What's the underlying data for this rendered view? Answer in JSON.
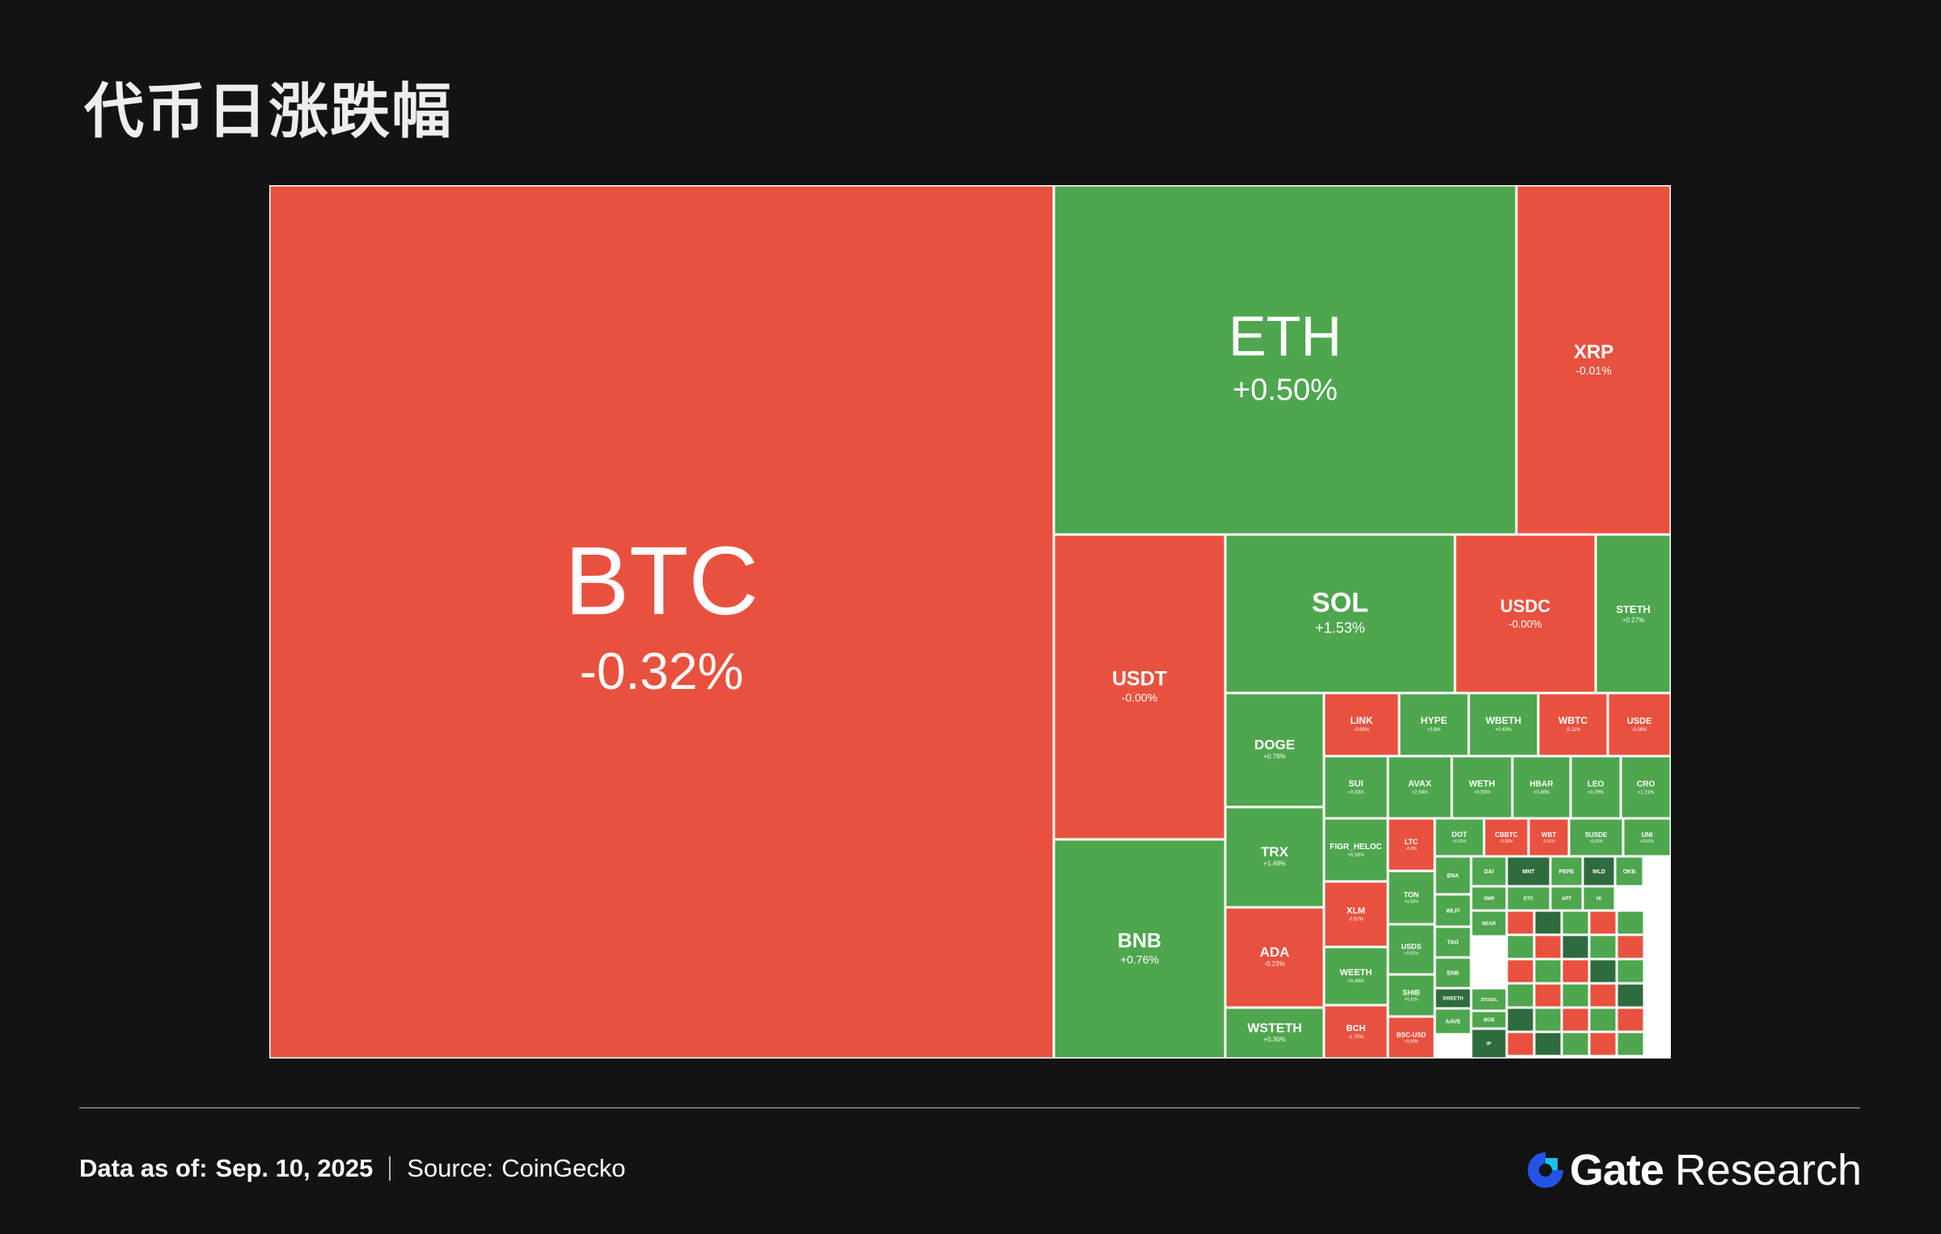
{
  "title": "代币日涨跌幅",
  "footer": {
    "date_label": "Data as of:",
    "date_value": "Sep. 10, 2025",
    "source_label": "Source:",
    "source_value": "CoinGecko",
    "brand_name": "Gate",
    "brand_suffix": "Research"
  },
  "colors": {
    "up": "#4ea64e",
    "down": "#e9513f",
    "strong_up": "#2e6b3e",
    "border": "#ffffff",
    "background": "#131313",
    "brand_blue": "#2354e6"
  },
  "chart_data": {
    "type": "treemap",
    "unit": "%",
    "tiles": [
      {
        "name": "BTC",
        "change": -0.32,
        "label": "-0.32%"
      },
      {
        "name": "ETH",
        "change": 0.5,
        "label": "+0.50%"
      },
      {
        "name": "XRP",
        "change": -0.01,
        "label": "-0.01%"
      },
      {
        "name": "USDT",
        "change": -0.0,
        "label": "-0.00%"
      },
      {
        "name": "BNB",
        "change": 0.76,
        "label": "+0.76%"
      },
      {
        "name": "SOL",
        "change": 1.53,
        "label": "+1.53%"
      },
      {
        "name": "USDC",
        "change": -0.0,
        "label": "-0.00%"
      },
      {
        "name": "STETH",
        "change": 0.27,
        "label": "+0.27%"
      },
      {
        "name": "DOGE",
        "change": 0.76,
        "label": "+0.76%"
      },
      {
        "name": "TRX",
        "change": 1.49,
        "label": "+1.49%"
      },
      {
        "name": "ADA",
        "change": -0.23,
        "label": "-0.23%"
      },
      {
        "name": "WSTETH",
        "change": 0.3,
        "label": "+0.30%"
      },
      {
        "name": "LINK",
        "change": -0.65,
        "label": "-0.65%"
      },
      {
        "name": "HYPE",
        "change": 3.8,
        "label": "+3.8%"
      },
      {
        "name": "WBETH",
        "change": 0.43,
        "label": "+0.43%"
      },
      {
        "name": "WBTC",
        "change": -0.11,
        "label": "-0.11%"
      },
      {
        "name": "USDE",
        "change": -0.08,
        "label": "-0.08%"
      },
      {
        "name": "SUI",
        "change": 0.33,
        "label": "+0.33%"
      },
      {
        "name": "AVAX",
        "change": 2.94,
        "label": "+2.94%"
      },
      {
        "name": "WETH",
        "change": 0.5,
        "label": "+0.50%"
      },
      {
        "name": "HBAR",
        "change": 0.46,
        "label": "+0.46%"
      },
      {
        "name": "LEO",
        "change": 0.29,
        "label": "+0.29%"
      },
      {
        "name": "CRO",
        "change": 1.21,
        "label": "+1.21%"
      },
      {
        "name": "FIGR_HELOC",
        "change": 0.16,
        "label": "+0.16%"
      },
      {
        "name": "XLM",
        "change": -0.57,
        "label": "-0.57%"
      },
      {
        "name": "WEETH",
        "change": 0.46,
        "label": "+0.46%"
      },
      {
        "name": "BCH",
        "change": -1.75,
        "label": "-1.75%"
      },
      {
        "name": "LTC",
        "change": -0.3,
        "label": "-0.3%"
      },
      {
        "name": "TON",
        "change": 0.43,
        "label": "+0.43%"
      },
      {
        "name": "USDS",
        "change": 0.02,
        "label": "+0.02%"
      },
      {
        "name": "SHIB",
        "change": 0.32,
        "label": "+0.32%"
      },
      {
        "name": "BSC-USD",
        "change": 0.0,
        "label": "+0.00%"
      },
      {
        "name": "DOT",
        "change": 0.32,
        "label": "+0.32%"
      },
      {
        "name": "CBBTC",
        "change": -0.36,
        "label": "-0.36%"
      },
      {
        "name": "WBT",
        "change": -0.11,
        "label": "-0.11%"
      },
      {
        "name": "SUSDE",
        "change": 0.03,
        "label": "+0.03%"
      },
      {
        "name": "UNI",
        "change": 0.62,
        "label": "+0.62%"
      },
      {
        "name": "ENA",
        "change": null,
        "label": ""
      },
      {
        "name": "DAI",
        "change": null,
        "label": ""
      },
      {
        "name": "MNT",
        "change": null,
        "label": ""
      },
      {
        "name": "PEPE",
        "change": null,
        "label": ""
      },
      {
        "name": "WLD",
        "change": null,
        "label": ""
      },
      {
        "name": "OKB",
        "change": null,
        "label": ""
      },
      {
        "name": "WLFI",
        "change": null,
        "label": ""
      },
      {
        "name": "XMR",
        "change": null,
        "label": ""
      },
      {
        "name": "TAO",
        "change": null,
        "label": ""
      },
      {
        "name": "ENB",
        "change": null,
        "label": ""
      },
      {
        "name": "SWEETH",
        "change": null,
        "label": ""
      },
      {
        "name": "AAVE",
        "change": null,
        "label": ""
      },
      {
        "name": "JITOSOL",
        "change": null,
        "label": ""
      },
      {
        "name": "BGB",
        "change": null,
        "label": ""
      },
      {
        "name": "IP",
        "change": null,
        "label": ""
      },
      {
        "name": "NEAR",
        "change": null,
        "label": ""
      },
      {
        "name": "ETC",
        "change": null,
        "label": ""
      },
      {
        "name": "APT",
        "change": null,
        "label": ""
      },
      {
        "name": "HI",
        "change": null,
        "label": ""
      }
    ]
  }
}
